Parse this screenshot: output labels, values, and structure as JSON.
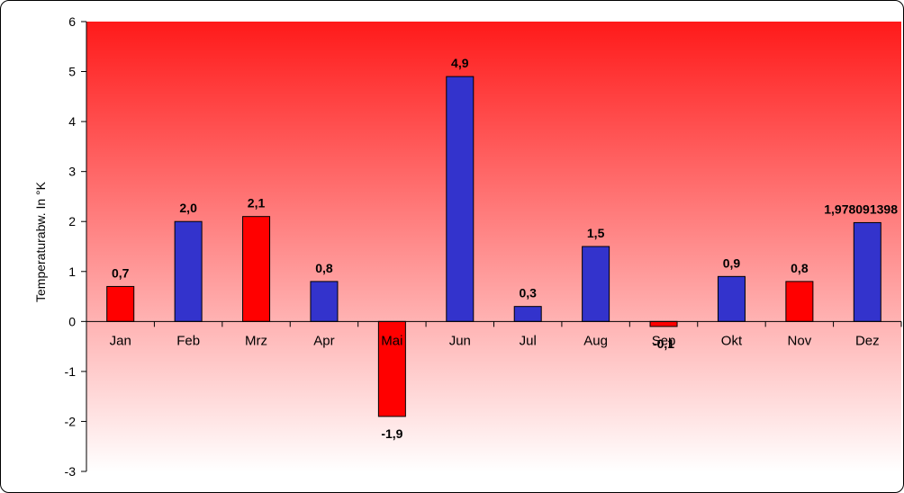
{
  "chart_data": {
    "type": "bar",
    "title": "",
    "xlabel": "",
    "ylabel": "Temperaturabw. In °K",
    "ylim": [
      -3,
      6
    ],
    "yticks": [
      "6",
      "5",
      "4",
      "3",
      "2",
      "1",
      "0",
      "-1",
      "-2",
      "-3"
    ],
    "grid": false,
    "legend": "none",
    "categories": [
      "Jan",
      "Feb",
      "Mrz",
      "Apr",
      "Mai",
      "Jun",
      "Jul",
      "Aug",
      "Sep",
      "Okt",
      "Nov",
      "Dez"
    ],
    "values": [
      0.7,
      2.0,
      2.1,
      0.8,
      -1.9,
      4.9,
      0.3,
      1.5,
      -0.1,
      0.9,
      0.8,
      1.978091398
    ],
    "data_labels": [
      "0,7",
      "2,0",
      "2,1",
      "0,8",
      "-1,9",
      "4,9",
      "0,3",
      "1,5",
      "-0,1",
      "0,9",
      "0,8",
      "1,978091398"
    ],
    "bar_colors": [
      "#ff0000",
      "#3333cc",
      "#ff0000",
      "#3333cc",
      "#ff0000",
      "#3333cc",
      "#3333cc",
      "#3333cc",
      "#ff0000",
      "#3333cc",
      "#ff0000",
      "#3333cc"
    ],
    "background_gradient": [
      "#ff1a1a",
      "#ffffff"
    ]
  }
}
